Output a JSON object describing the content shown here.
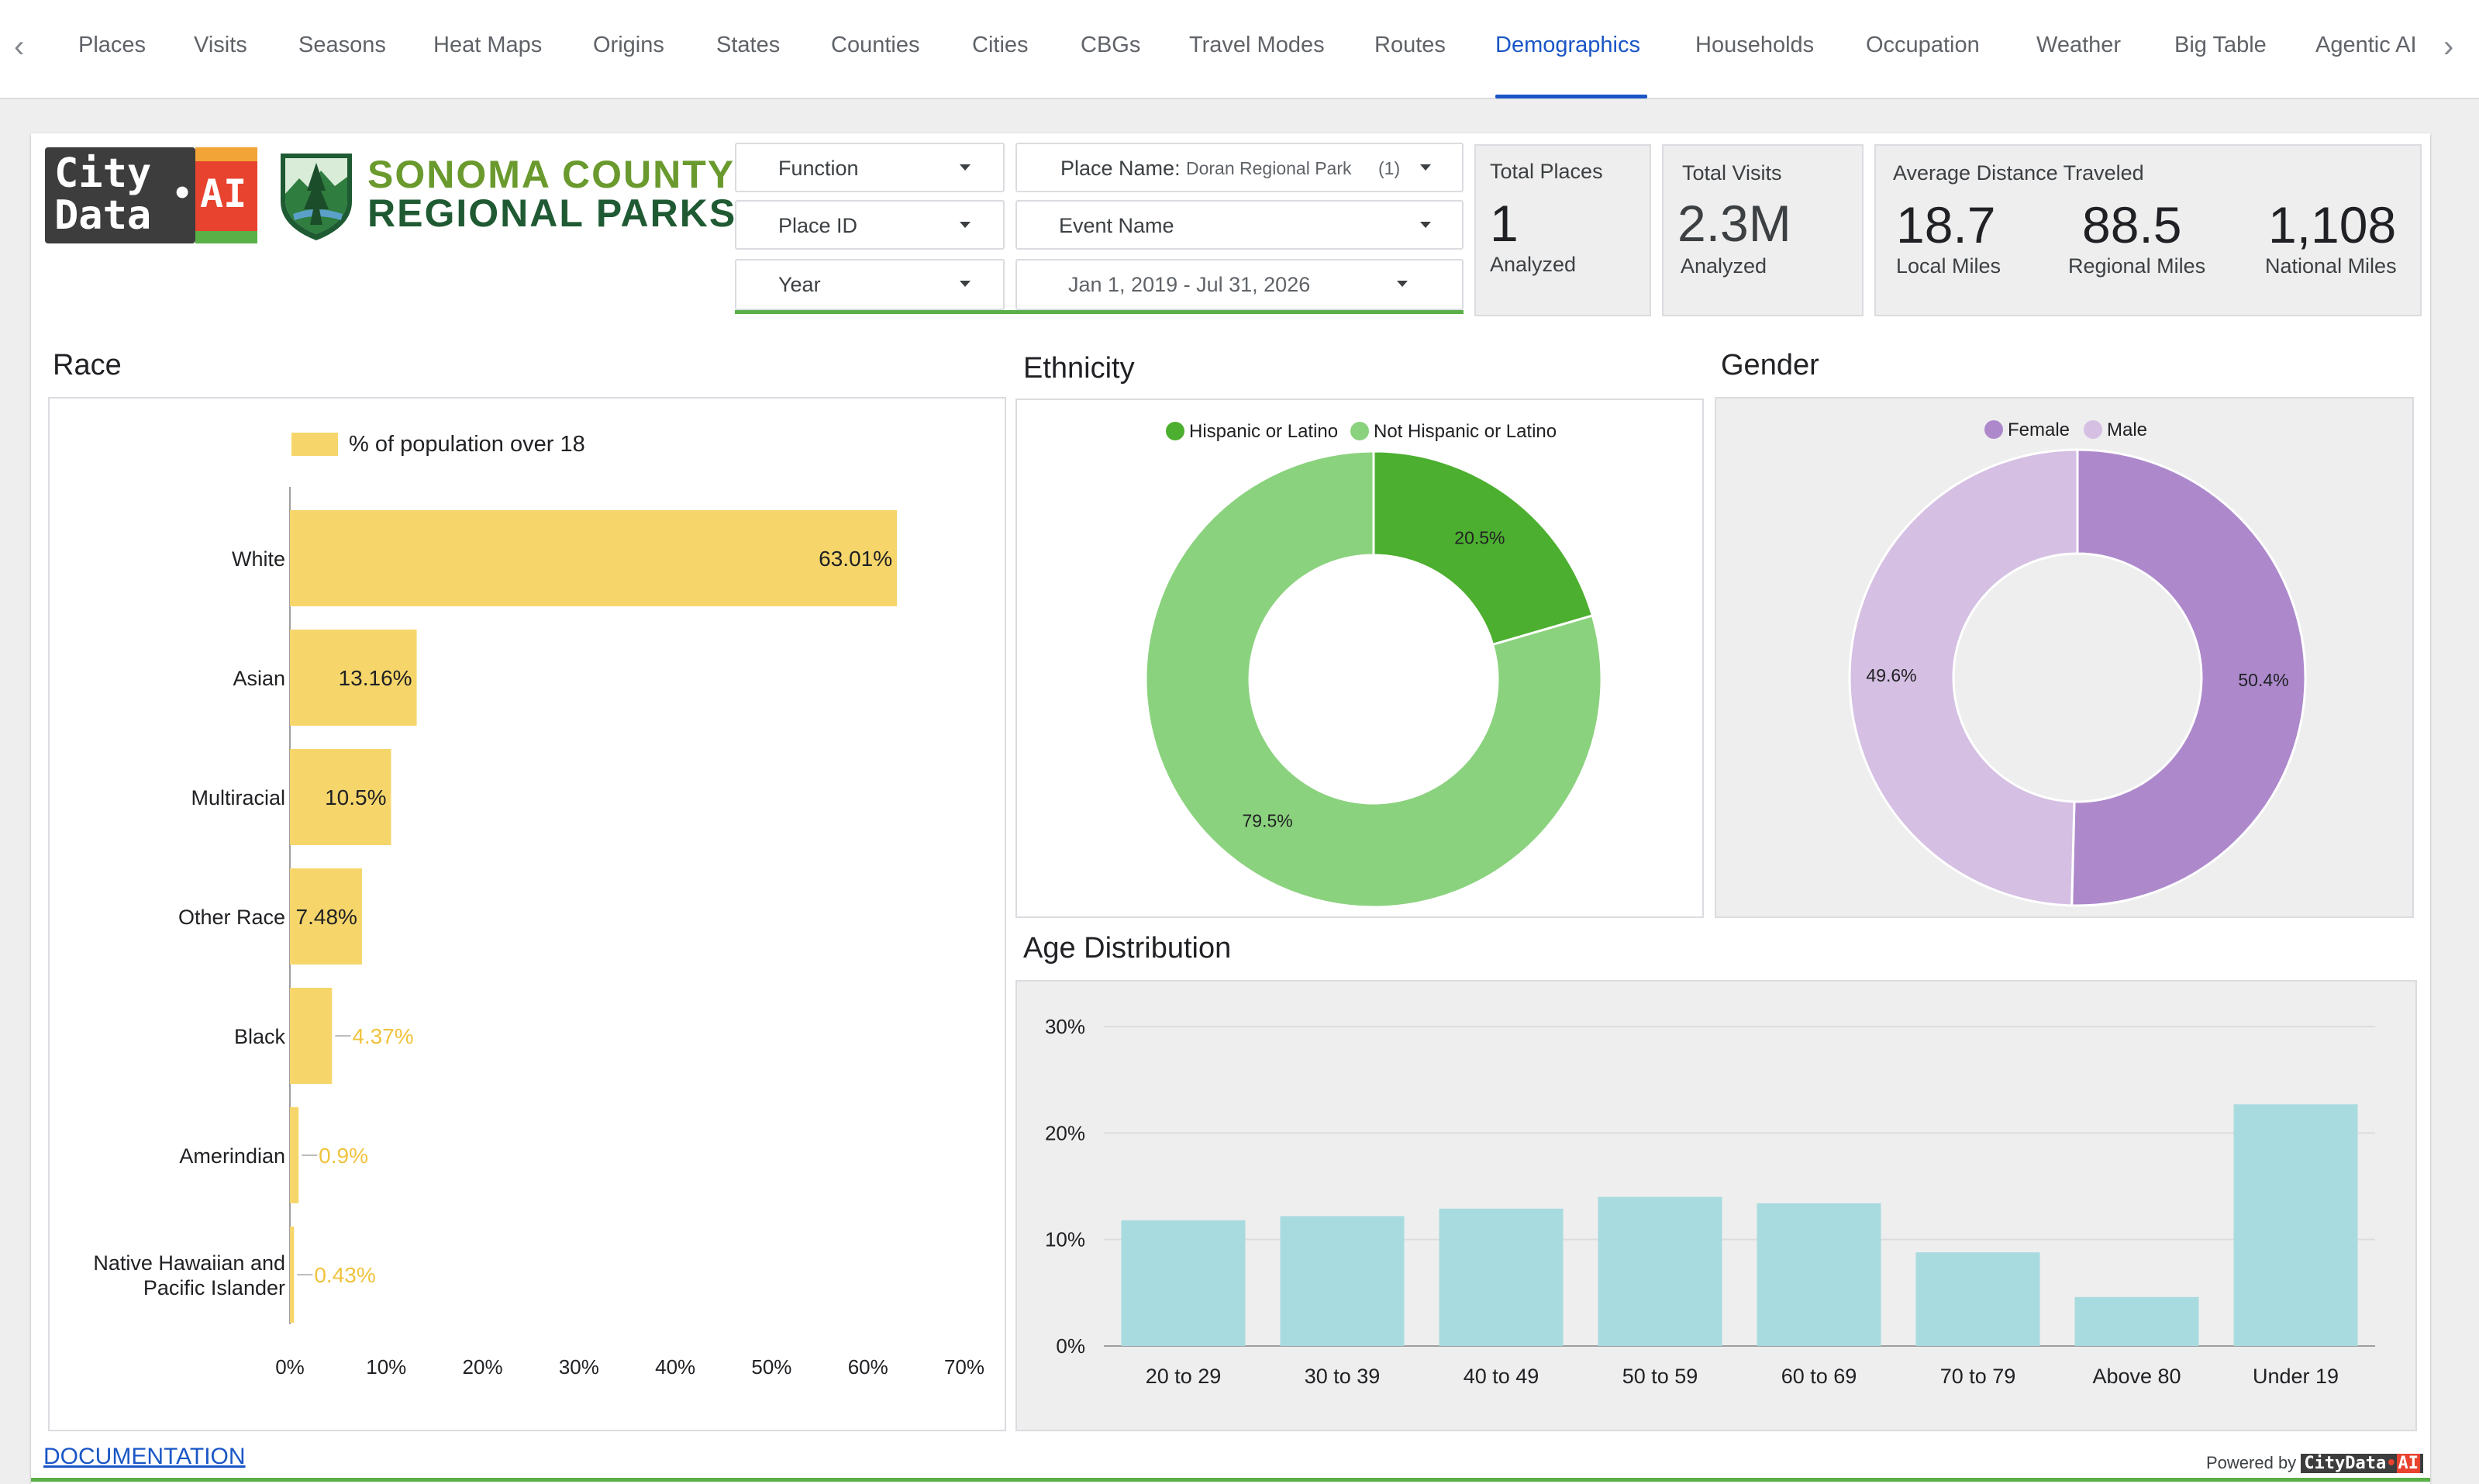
{
  "tabs": [
    {
      "label": "Places"
    },
    {
      "label": "Visits"
    },
    {
      "label": "Seasons"
    },
    {
      "label": "Heat Maps"
    },
    {
      "label": "Origins"
    },
    {
      "label": "States"
    },
    {
      "label": "Counties"
    },
    {
      "label": "Cities"
    },
    {
      "label": "CBGs"
    },
    {
      "label": "Travel Modes"
    },
    {
      "label": "Routes"
    },
    {
      "label": "Demographics"
    },
    {
      "label": "Households"
    },
    {
      "label": "Occupation"
    },
    {
      "label": "Weather"
    },
    {
      "label": "Big Table"
    },
    {
      "label": "Agentic AI"
    }
  ],
  "active_tab": "Demographics",
  "logo": {
    "city": "City",
    "data": "Data",
    "ai": "AI",
    "dot": "•"
  },
  "brand": {
    "line1": "SONOMA COUNTY",
    "line2": "REGIONAL PARKS"
  },
  "controls": {
    "function": "Function",
    "place_id": "Place ID",
    "year": "Year",
    "place_name_label": "Place Name:",
    "place_name_value": "Doran Regional Park",
    "place_name_count": "(1)",
    "event_name": "Event Name",
    "date_range": "Jan 1, 2019 - Jul 31, 2026"
  },
  "scorecards": {
    "total_places": {
      "label": "Total Places",
      "value": "1",
      "sub": "Analyzed"
    },
    "total_visits": {
      "label": "Total Visits",
      "value": "2.3M",
      "sub": "Analyzed"
    },
    "avg_distance": {
      "label": "Average Distance Traveled",
      "local": {
        "value": "18.7",
        "sub": "Local Miles"
      },
      "regional": {
        "value": "88.5",
        "sub": "Regional Miles"
      },
      "national": {
        "value": "1,108",
        "sub": "National Miles"
      }
    }
  },
  "sections": {
    "race": "Race",
    "ethnicity": "Ethnicity",
    "gender": "Gender",
    "age": "Age Distribution"
  },
  "colors": {
    "race_bar": "#f6d66b",
    "race_label_outside": "#f0c33c",
    "eth_hispanic": "#4caf2f",
    "eth_not": "#8bd27e",
    "female": "#ad89cc",
    "male": "#d5bfe3",
    "age_bar": "#a8dbdf",
    "accent": "#1a56c6"
  },
  "chart_data": [
    {
      "type": "bar",
      "orientation": "horizontal",
      "legend": "% of population over 18",
      "categories": [
        "White",
        "Asian",
        "Multiracial",
        "Other Race",
        "Black",
        "Amerindian",
        "Native Hawaiian and Pacific Islander"
      ],
      "values": [
        63.01,
        13.16,
        10.5,
        7.48,
        4.37,
        0.9,
        0.43
      ],
      "labels": [
        "63.01%",
        "13.16%",
        "10.5%",
        "7.48%",
        "4.37%",
        "0.9%",
        "0.43%"
      ],
      "xticks": [
        "0%",
        "10%",
        "20%",
        "30%",
        "40%",
        "50%",
        "60%",
        "70%"
      ],
      "xlim": [
        0,
        70
      ]
    },
    {
      "type": "pie",
      "donut": true,
      "labels": [
        "Hispanic or Latino",
        "Not Hispanic or Latino"
      ],
      "values": [
        20.5,
        79.5
      ],
      "value_labels": [
        "20.5%",
        "79.5%"
      ]
    },
    {
      "type": "pie",
      "donut": true,
      "labels": [
        "Female",
        "Male"
      ],
      "values": [
        50.4,
        49.6
      ],
      "value_labels": [
        "50.4%",
        "49.6%"
      ]
    },
    {
      "type": "bar",
      "categories": [
        "20 to 29",
        "30 to 39",
        "40 to 49",
        "50 to 59",
        "60 to 69",
        "70 to 79",
        "Above 80",
        "Under 19"
      ],
      "values": [
        11.8,
        12.2,
        12.9,
        14.0,
        13.4,
        8.8,
        4.6,
        22.7
      ],
      "yticks": [
        "0%",
        "10%",
        "20%",
        "30%"
      ],
      "ylim": [
        0,
        30
      ]
    }
  ],
  "footer": {
    "documentation": "DOCUMENTATION",
    "powered_by": "Powered by",
    "powered_brand": "CityData",
    "powered_ai": "AI"
  }
}
